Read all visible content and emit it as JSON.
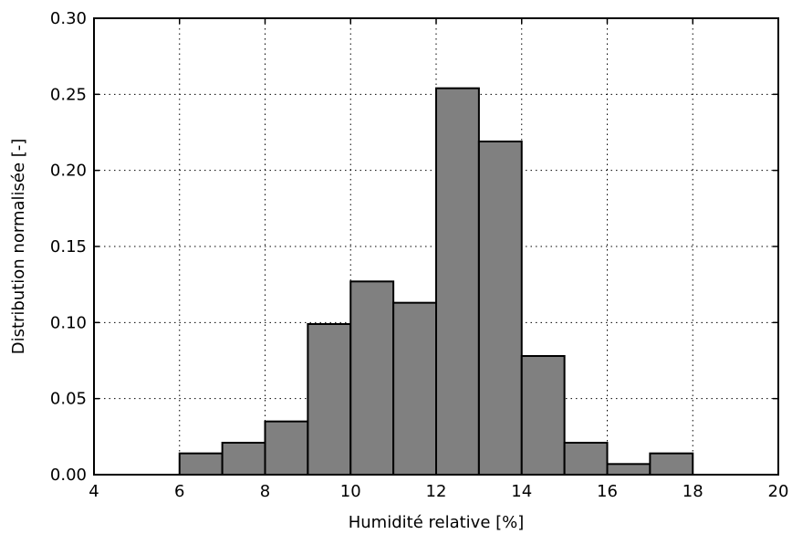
{
  "chart_data": {
    "type": "bar",
    "title": "",
    "xlabel": "Humidité relative [%]",
    "ylabel": "Distribution normalisée [-]",
    "xlim": [
      4,
      20
    ],
    "ylim": [
      0,
      0.3
    ],
    "xticks": [
      4,
      6,
      8,
      10,
      12,
      14,
      16,
      18,
      20
    ],
    "yticks": [
      0.0,
      0.05,
      0.1,
      0.15,
      0.2,
      0.25,
      0.3
    ],
    "xtick_labels": [
      "4",
      "6",
      "8",
      "10",
      "12",
      "14",
      "16",
      "18",
      "20"
    ],
    "ytick_labels": [
      "0.00",
      "0.05",
      "0.10",
      "0.15",
      "0.20",
      "0.25",
      "0.30"
    ],
    "grid": true,
    "bin_edges": [
      5,
      6,
      7,
      8,
      9,
      10,
      11,
      12,
      13,
      14,
      15,
      16,
      17,
      18,
      19,
      20
    ],
    "values": [
      0.0,
      0.014,
      0.021,
      0.035,
      0.099,
      0.127,
      0.113,
      0.254,
      0.219,
      0.078,
      0.021,
      0.007,
      0.014,
      0.0,
      0.0
    ],
    "colors": {
      "bar_fill": "#808080",
      "bar_edge": "#000000"
    }
  }
}
